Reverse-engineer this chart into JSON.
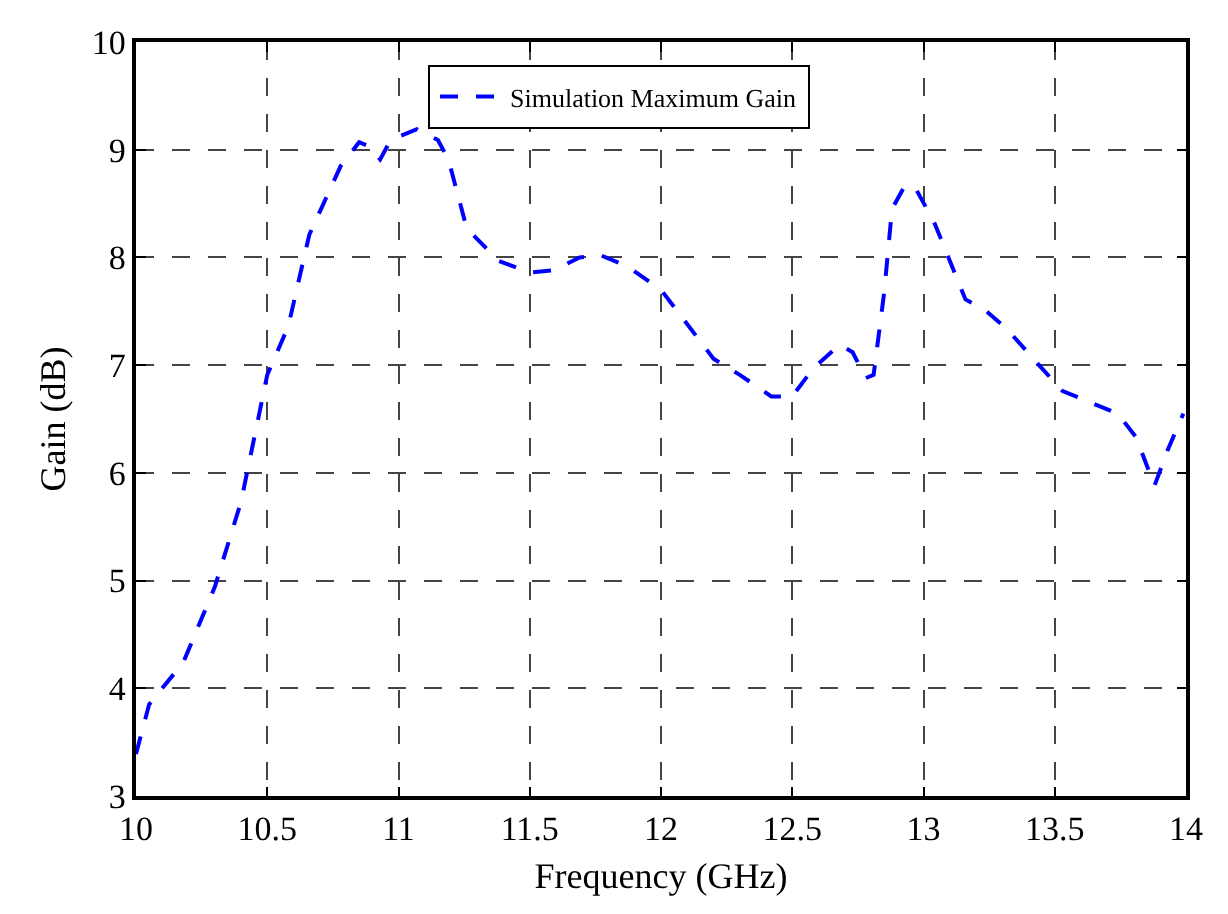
{
  "chart_data": {
    "type": "line",
    "xlabel": "Frequency (GHz)",
    "ylabel": "Gain (dB)",
    "xlim": [
      10,
      14
    ],
    "xticks": [
      10,
      10.5,
      11,
      11.5,
      12,
      12.5,
      13,
      13.5,
      14
    ],
    "ylim": [
      3,
      10
    ],
    "yticks": [
      3,
      4,
      5,
      6,
      7,
      8,
      9,
      10
    ],
    "grid": true,
    "legend": "top",
    "line_style": "dashed",
    "series": [
      {
        "name": "Simulation Maximum Gain",
        "color": "#0000ff",
        "x": [
          10,
          10.05,
          10.18,
          10.3,
          10.4,
          10.5,
          10.58,
          10.66,
          10.78,
          10.85,
          10.89,
          10.93,
          10.97,
          11.07,
          11.15,
          11.19,
          11.26,
          11.38,
          11.5,
          11.59,
          11.69,
          11.77,
          11.87,
          12.0,
          12.2,
          12.3,
          12.42,
          12.5,
          12.58,
          12.68,
          12.73,
          12.78,
          12.81,
          12.85,
          12.88,
          12.93,
          12.97,
          13.04,
          13.1,
          13.16,
          13.23,
          13.32,
          13.44,
          13.53,
          13.65,
          13.74,
          13.81,
          13.88,
          13.93,
          13.99
        ],
        "values": [
          3.39,
          3.85,
          4.24,
          4.94,
          5.73,
          6.91,
          7.36,
          8.21,
          8.85,
          9.07,
          9.03,
          8.91,
          9.09,
          9.19,
          9.09,
          8.91,
          8.27,
          7.97,
          7.86,
          7.88,
          8.0,
          8.02,
          7.92,
          7.7,
          7.06,
          6.91,
          6.71,
          6.71,
          6.97,
          7.19,
          7.12,
          6.88,
          6.91,
          7.67,
          8.45,
          8.67,
          8.64,
          8.33,
          7.97,
          7.61,
          7.52,
          7.33,
          7.0,
          6.76,
          6.64,
          6.55,
          6.33,
          5.88,
          6.21,
          6.55
        ]
      }
    ]
  }
}
